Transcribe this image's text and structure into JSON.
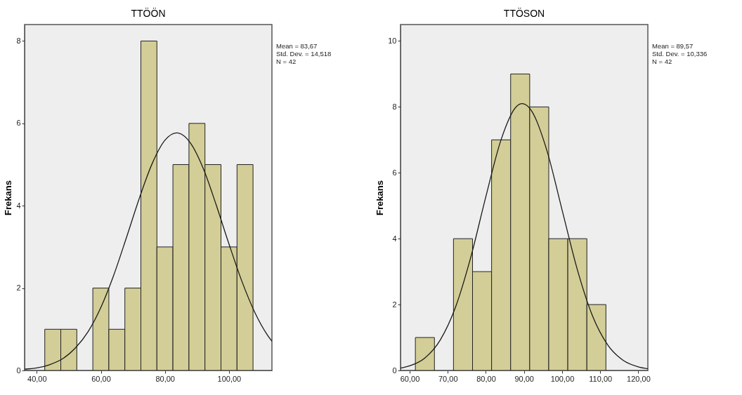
{
  "chart_data": [
    {
      "type": "histogram",
      "title": "TTÖÖN",
      "ylabel": "Frekans",
      "annotations": [
        "Mean = 83,67",
        "Std. Dev. = 14,518",
        "N = 42"
      ],
      "xlim": [
        36.2,
        113.4
      ],
      "ylim": [
        0,
        8.4
      ],
      "xticks": [
        {
          "value": 40,
          "label": "40,00"
        },
        {
          "value": 60,
          "label": "60,00"
        },
        {
          "value": 80,
          "label": "80,00"
        },
        {
          "value": 100,
          "label": "100,00"
        }
      ],
      "yticks": [
        0,
        2,
        4,
        6,
        8
      ],
      "grid": false,
      "series": [
        {
          "color": "#d3ce97",
          "bins": [
            42.5,
            47.5,
            52.5,
            57.5,
            62.5,
            67.5,
            72.5,
            77.5,
            82.5,
            87.5,
            92.5,
            97.5,
            102.5,
            107.5
          ],
          "values": [
            1,
            1,
            0,
            2,
            1,
            2,
            8,
            3,
            5,
            6,
            5,
            3,
            5
          ]
        },
        {
          "type": "line",
          "color": "#1a1a1a",
          "x": [
            36.2,
            40,
            44,
            48,
            52,
            56,
            60,
            64,
            68,
            72,
            76,
            80,
            83.67,
            88,
            92,
            96,
            100,
            104,
            108,
            112,
            113.4
          ],
          "values": [
            0.03,
            0.06,
            0.14,
            0.28,
            0.54,
            0.94,
            1.53,
            2.31,
            3.23,
            4.18,
            5.02,
            5.59,
            5.77,
            5.52,
            4.9,
            4.02,
            3.07,
            2.17,
            1.42,
            0.86,
            0.71
          ]
        }
      ]
    },
    {
      "type": "histogram",
      "title": "TTÖSON",
      "ylabel": "Frekans",
      "annotations": [
        "Mean = 89,57",
        "Std. Dev. = 10,336",
        "N = 42"
      ],
      "xlim": [
        57.6,
        122.5
      ],
      "ylim": [
        0,
        10.5
      ],
      "xticks": [
        {
          "value": 60,
          "label": "60,00"
        },
        {
          "value": 70,
          "label": "70,00"
        },
        {
          "value": 80,
          "label": "80,00"
        },
        {
          "value": 90,
          "label": "90,00"
        },
        {
          "value": 100,
          "label": "100,00"
        },
        {
          "value": 110,
          "label": "110,00"
        },
        {
          "value": 120,
          "label": "120,00"
        }
      ],
      "yticks": [
        0,
        2,
        4,
        6,
        8,
        10
      ],
      "grid": false,
      "series": [
        {
          "color": "#d3ce97",
          "bins": [
            61.5,
            66.5,
            71.5,
            76.5,
            81.5,
            86.5,
            91.5,
            96.5,
            101.5,
            106.5,
            111.5
          ],
          "values": [
            1,
            0,
            4,
            3,
            7,
            9,
            8,
            4,
            4,
            2
          ]
        },
        {
          "type": "line",
          "color": "#1a1a1a",
          "x": [
            57.6,
            60,
            64,
            68,
            72,
            76,
            80,
            84,
            88,
            89.57,
            92,
            96,
            100,
            104,
            108,
            112,
            116,
            120,
            122.5
          ],
          "values": [
            0.07,
            0.14,
            0.38,
            0.92,
            1.91,
            3.42,
            5.28,
            7.01,
            8.01,
            8.1,
            7.88,
            6.68,
            4.87,
            3.06,
            1.65,
            0.77,
            0.31,
            0.11,
            0.05
          ]
        }
      ]
    }
  ]
}
